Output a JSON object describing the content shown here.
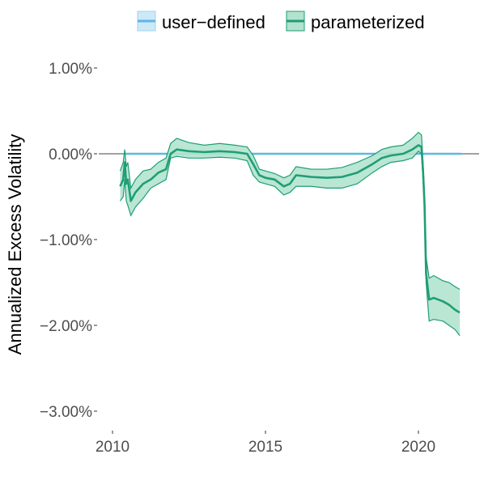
{
  "chart_data": {
    "type": "line",
    "title": "",
    "xlabel": "",
    "ylabel": "Annualized Excess Volatility",
    "xlim": [
      2009.5,
      2022.0
    ],
    "ylim": [
      -3.1,
      1.2
    ],
    "x_ticks": [
      2010,
      2015,
      2020
    ],
    "x_tick_labels": [
      "2010",
      "2015",
      "2020"
    ],
    "y_ticks": [
      1.0,
      0.0,
      -1.0,
      -2.0,
      -3.0
    ],
    "y_tick_labels": [
      "1.00%",
      "0.00%",
      "−1.00%",
      "−2.00%",
      "−3.00%"
    ],
    "grid": false,
    "zero_line": true,
    "legend_position": "top",
    "series": [
      {
        "name": "user−defined",
        "color": "#5cb8e4",
        "fill_color": "#cde9f8",
        "x": [
          2010.4,
          2021.4
        ],
        "values": [
          0.0,
          0.0
        ],
        "lower": [
          0.0,
          0.0
        ],
        "upper": [
          0.0,
          0.0
        ]
      },
      {
        "name": "parameterized",
        "color": "#1f9e74",
        "fill_color": "#b3e3cf",
        "x": [
          2010.25,
          2010.35,
          2010.4,
          2010.45,
          2010.5,
          2010.6,
          2010.75,
          2011.0,
          2011.25,
          2011.5,
          2011.75,
          2011.9,
          2012.1,
          2012.5,
          2013.0,
          2013.5,
          2014.0,
          2014.4,
          2014.6,
          2014.8,
          2015.0,
          2015.3,
          2015.6,
          2015.8,
          2016.0,
          2016.5,
          2017.0,
          2017.5,
          2018.0,
          2018.5,
          2018.8,
          2019.1,
          2019.5,
          2019.8,
          2020.0,
          2020.1,
          2020.15,
          2020.2,
          2020.25,
          2020.35,
          2020.5,
          2020.8,
          2021.0,
          2021.2,
          2021.35
        ],
        "values": [
          -0.38,
          -0.3,
          -0.1,
          -0.35,
          -0.3,
          -0.55,
          -0.45,
          -0.35,
          -0.3,
          -0.22,
          -0.18,
          0.0,
          0.05,
          0.03,
          0.02,
          0.03,
          0.02,
          0.0,
          -0.12,
          -0.25,
          -0.28,
          -0.3,
          -0.38,
          -0.35,
          -0.25,
          -0.27,
          -0.28,
          -0.27,
          -0.22,
          -0.12,
          -0.05,
          -0.02,
          0.0,
          0.05,
          0.1,
          0.08,
          -0.2,
          -0.6,
          -1.4,
          -1.7,
          -1.68,
          -1.72,
          -1.76,
          -1.82,
          -1.85
        ],
        "lower": [
          -0.55,
          -0.5,
          -0.3,
          -0.55,
          -0.6,
          -0.72,
          -0.62,
          -0.52,
          -0.4,
          -0.35,
          -0.3,
          -0.05,
          -0.03,
          -0.05,
          -0.05,
          -0.04,
          -0.05,
          -0.08,
          -0.25,
          -0.33,
          -0.35,
          -0.38,
          -0.48,
          -0.45,
          -0.38,
          -0.38,
          -0.4,
          -0.4,
          -0.35,
          -0.22,
          -0.15,
          -0.1,
          -0.08,
          -0.05,
          0.03,
          0.0,
          -0.3,
          -0.7,
          -1.5,
          -1.95,
          -1.93,
          -1.95,
          -2.0,
          -2.05,
          -2.12
        ],
        "upper": [
          -0.2,
          -0.1,
          0.05,
          -0.15,
          -0.1,
          -0.4,
          -0.3,
          -0.2,
          -0.18,
          -0.1,
          -0.05,
          0.12,
          0.18,
          0.13,
          0.1,
          0.12,
          0.1,
          0.08,
          -0.02,
          -0.18,
          -0.2,
          -0.23,
          -0.28,
          -0.25,
          -0.15,
          -0.18,
          -0.18,
          -0.16,
          -0.1,
          -0.02,
          0.05,
          0.08,
          0.1,
          0.18,
          0.25,
          0.22,
          -0.1,
          -0.5,
          -1.2,
          -1.45,
          -1.42,
          -1.48,
          -1.5,
          -1.55,
          -1.58
        ]
      }
    ]
  }
}
